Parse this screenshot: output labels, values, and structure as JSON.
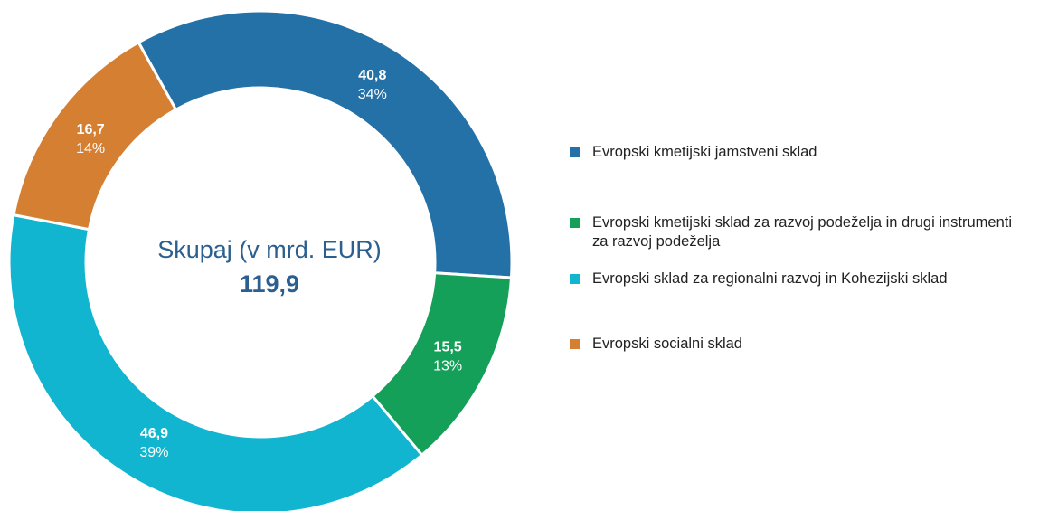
{
  "chart_data": {
    "type": "donut",
    "center_label": "Skupaj (v mrd. EUR)",
    "total": 119.9,
    "total_label": "119,9",
    "categories": [
      "Evropski kmetijski jamstveni sklad",
      "Evropski kmetijski sklad za razvoj podeželja in drugi instrumenti za razvoj podeželja",
      "Evropski sklad za regionalni razvoj in Kohezijski sklad",
      "Evropski socialni sklad"
    ],
    "values": [
      40.8,
      15.5,
      46.9,
      16.7
    ],
    "value_labels": [
      "40,8",
      "15,5",
      "46,9",
      "16,7"
    ],
    "percent_labels": [
      "34%",
      "13%",
      "39%",
      "14%"
    ],
    "colors": [
      "#2471a8",
      "#15a05a",
      "#12b5d0",
      "#d57f33"
    ]
  }
}
